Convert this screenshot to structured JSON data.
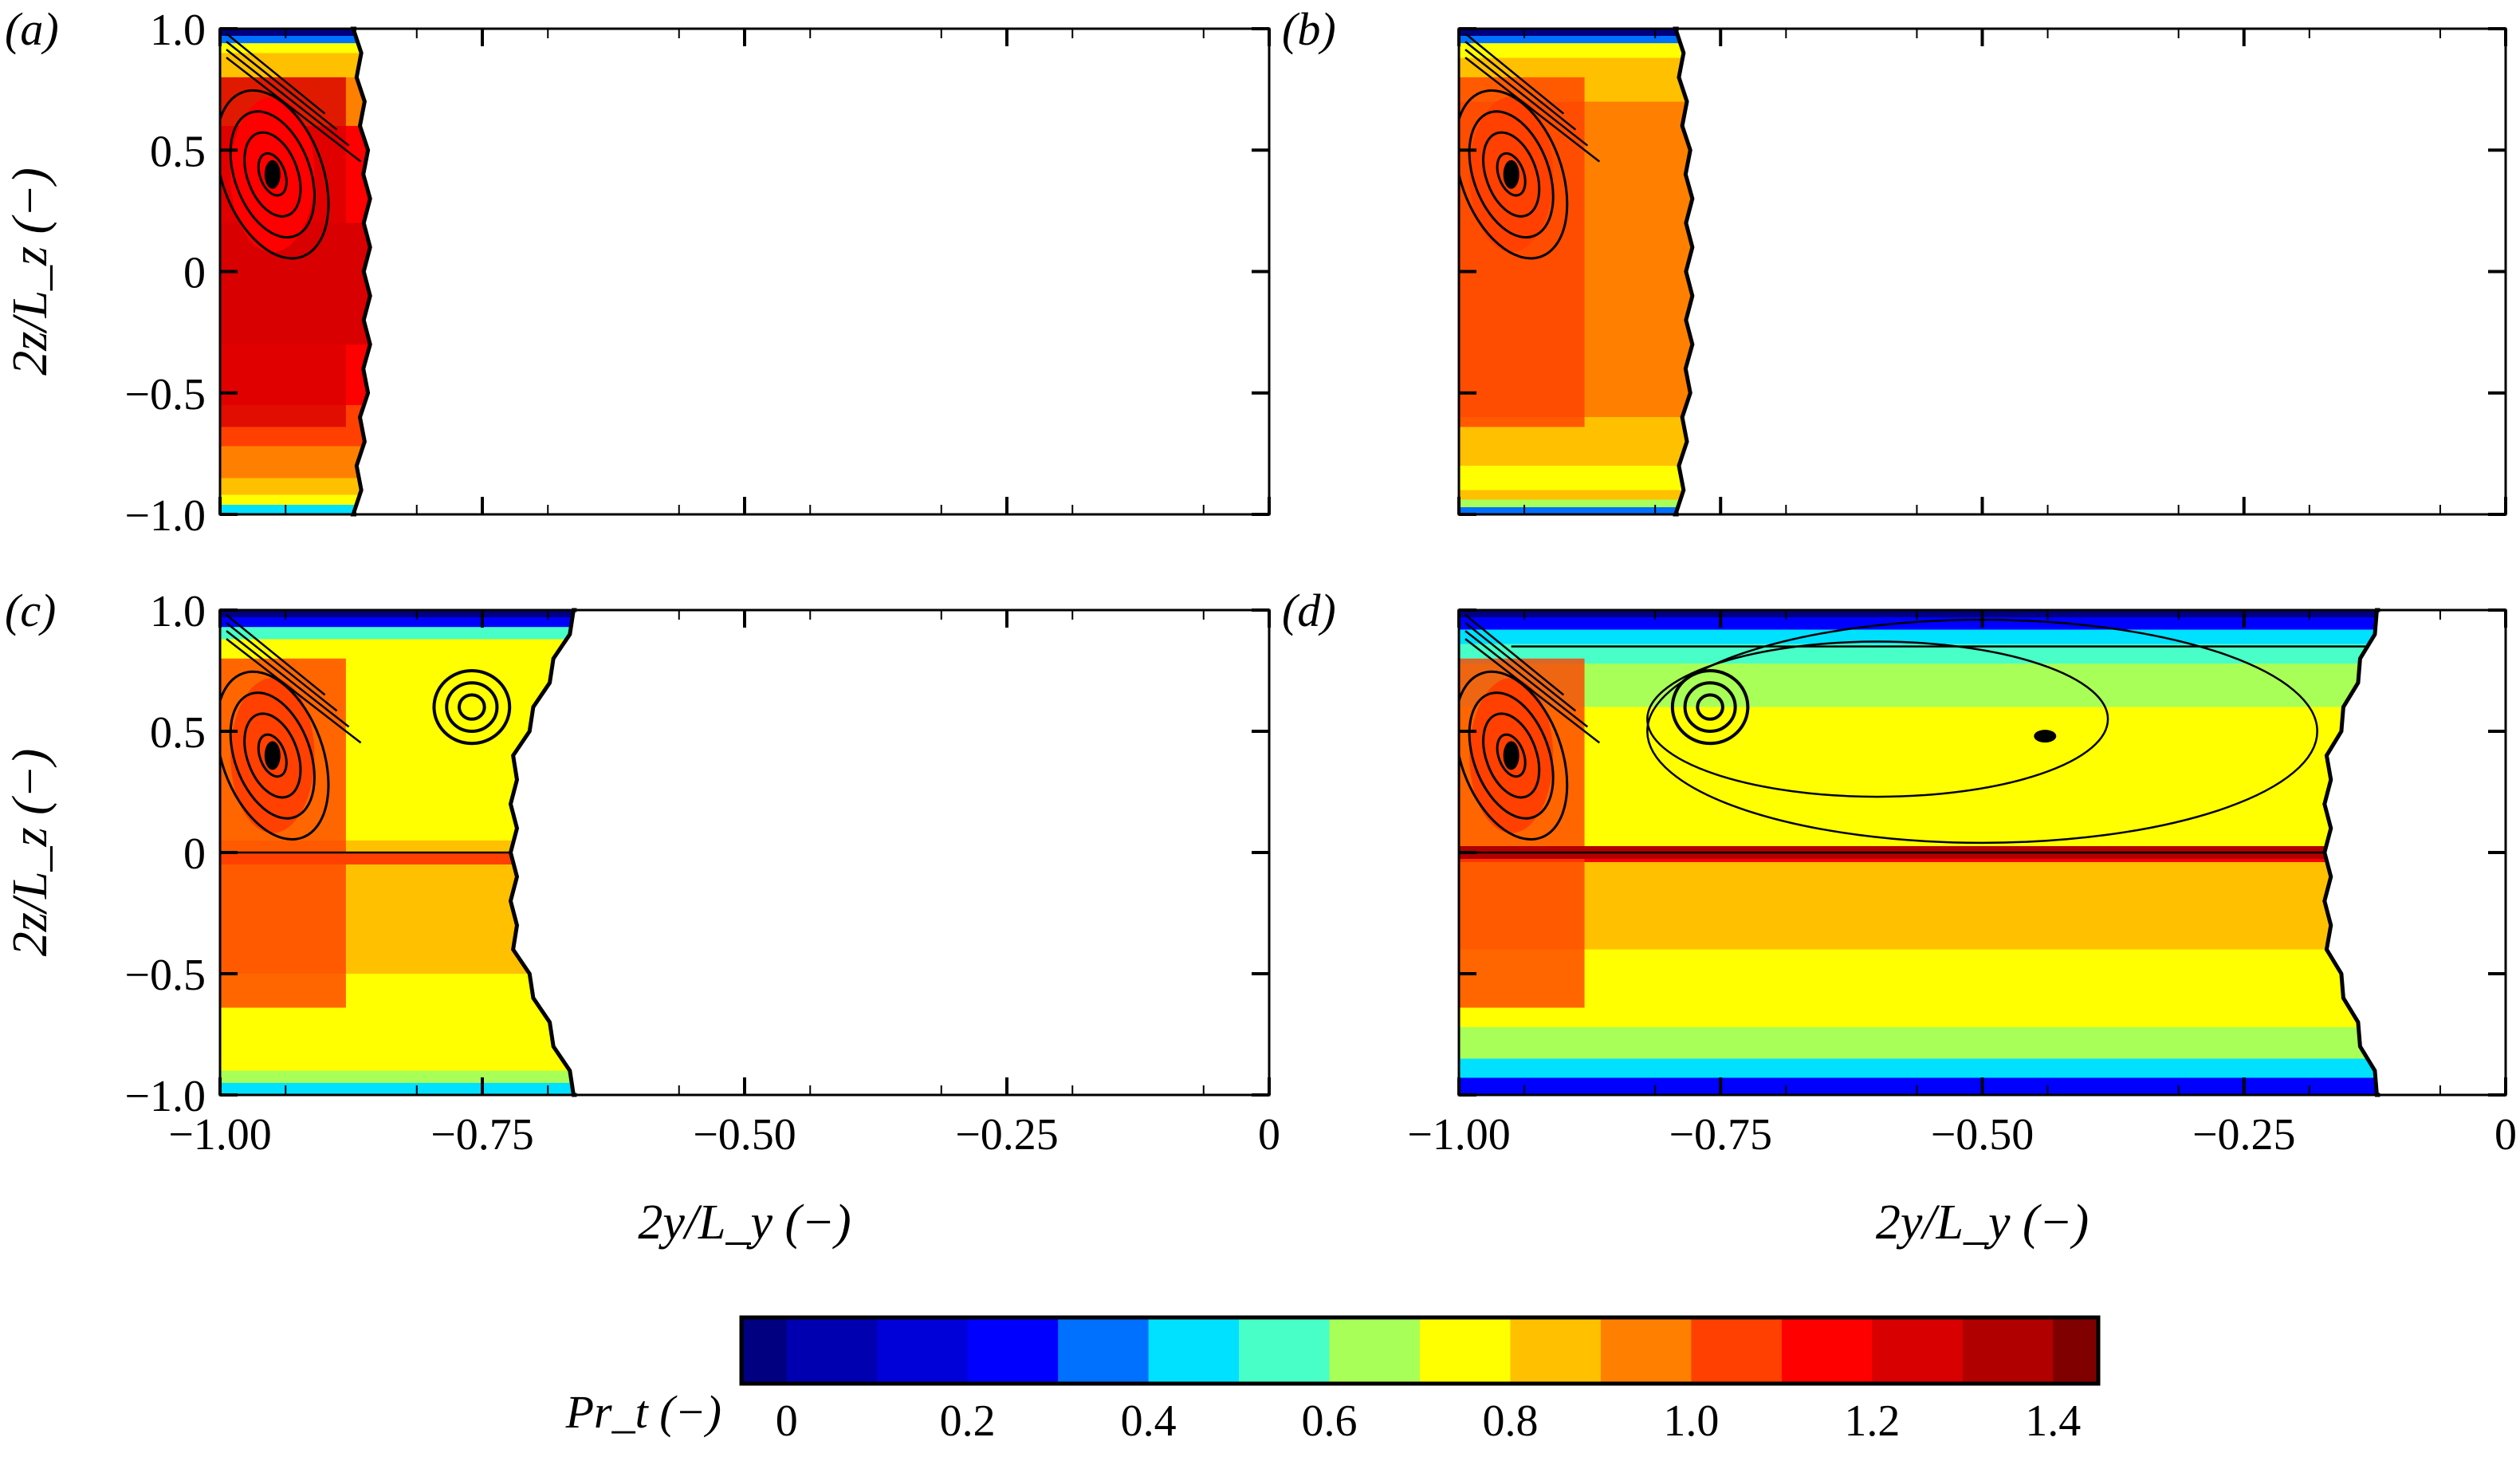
{
  "chart_data": {
    "type": "heatmap",
    "subtype": "filled contour with streamlines",
    "panels": [
      {
        "label": "(a)",
        "y_extent_right_edge": [
          -0.87,
          -0.86
        ],
        "show_xticklabels": false,
        "show_yticklabels": true
      },
      {
        "label": "(b)",
        "y_extent_right_edge": [
          -0.79,
          -0.78
        ],
        "show_xticklabels": false,
        "show_yticklabels": false
      },
      {
        "label": "(c)",
        "y_extent_right_edge": [
          -0.66,
          -0.72
        ],
        "show_xticklabels": true,
        "show_yticklabels": true
      },
      {
        "label": "(d)",
        "y_extent_right_edge": [
          -0.12,
          -0.17
        ],
        "show_xticklabels": true,
        "show_yticklabels": false
      }
    ],
    "xlabel": "2y/L_y (−)",
    "ylabel": "2z/L_z (−)",
    "xlim": [
      -1.0,
      0
    ],
    "ylim": [
      -1.0,
      1.0
    ],
    "xticks": [
      -1.0,
      -0.75,
      -0.5,
      -0.25,
      0
    ],
    "xticklabels": [
      "−1.00",
      "−0.75",
      "−0.50",
      "−0.25",
      "0"
    ],
    "yticks": [
      1.0,
      0.5,
      0,
      -0.5,
      -1.0
    ],
    "yticklabels": [
      "1.0",
      "0.5",
      "0",
      "−0.5",
      "−1.0"
    ],
    "grid": false,
    "colorbar": {
      "label": "Pr_t (−)",
      "ticks": [
        0,
        0.2,
        0.4,
        0.6,
        0.8,
        1.0,
        1.2,
        1.4
      ],
      "ticklabels": [
        "0",
        "0.2",
        "0.4",
        "0.6",
        "0.8",
        "1.0",
        "1.2",
        "1.4"
      ],
      "range": [
        -0.05,
        1.45
      ],
      "placement": "bottom",
      "colors": [
        "#000080",
        "#0000b0",
        "#0000d8",
        "#0000ff",
        "#0070ff",
        "#00e0ff",
        "#48ffc8",
        "#a8ff58",
        "#ffff00",
        "#ffc000",
        "#ff8000",
        "#ff4000",
        "#ff0000",
        "#d80000",
        "#b00000",
        "#800000"
      ]
    }
  }
}
